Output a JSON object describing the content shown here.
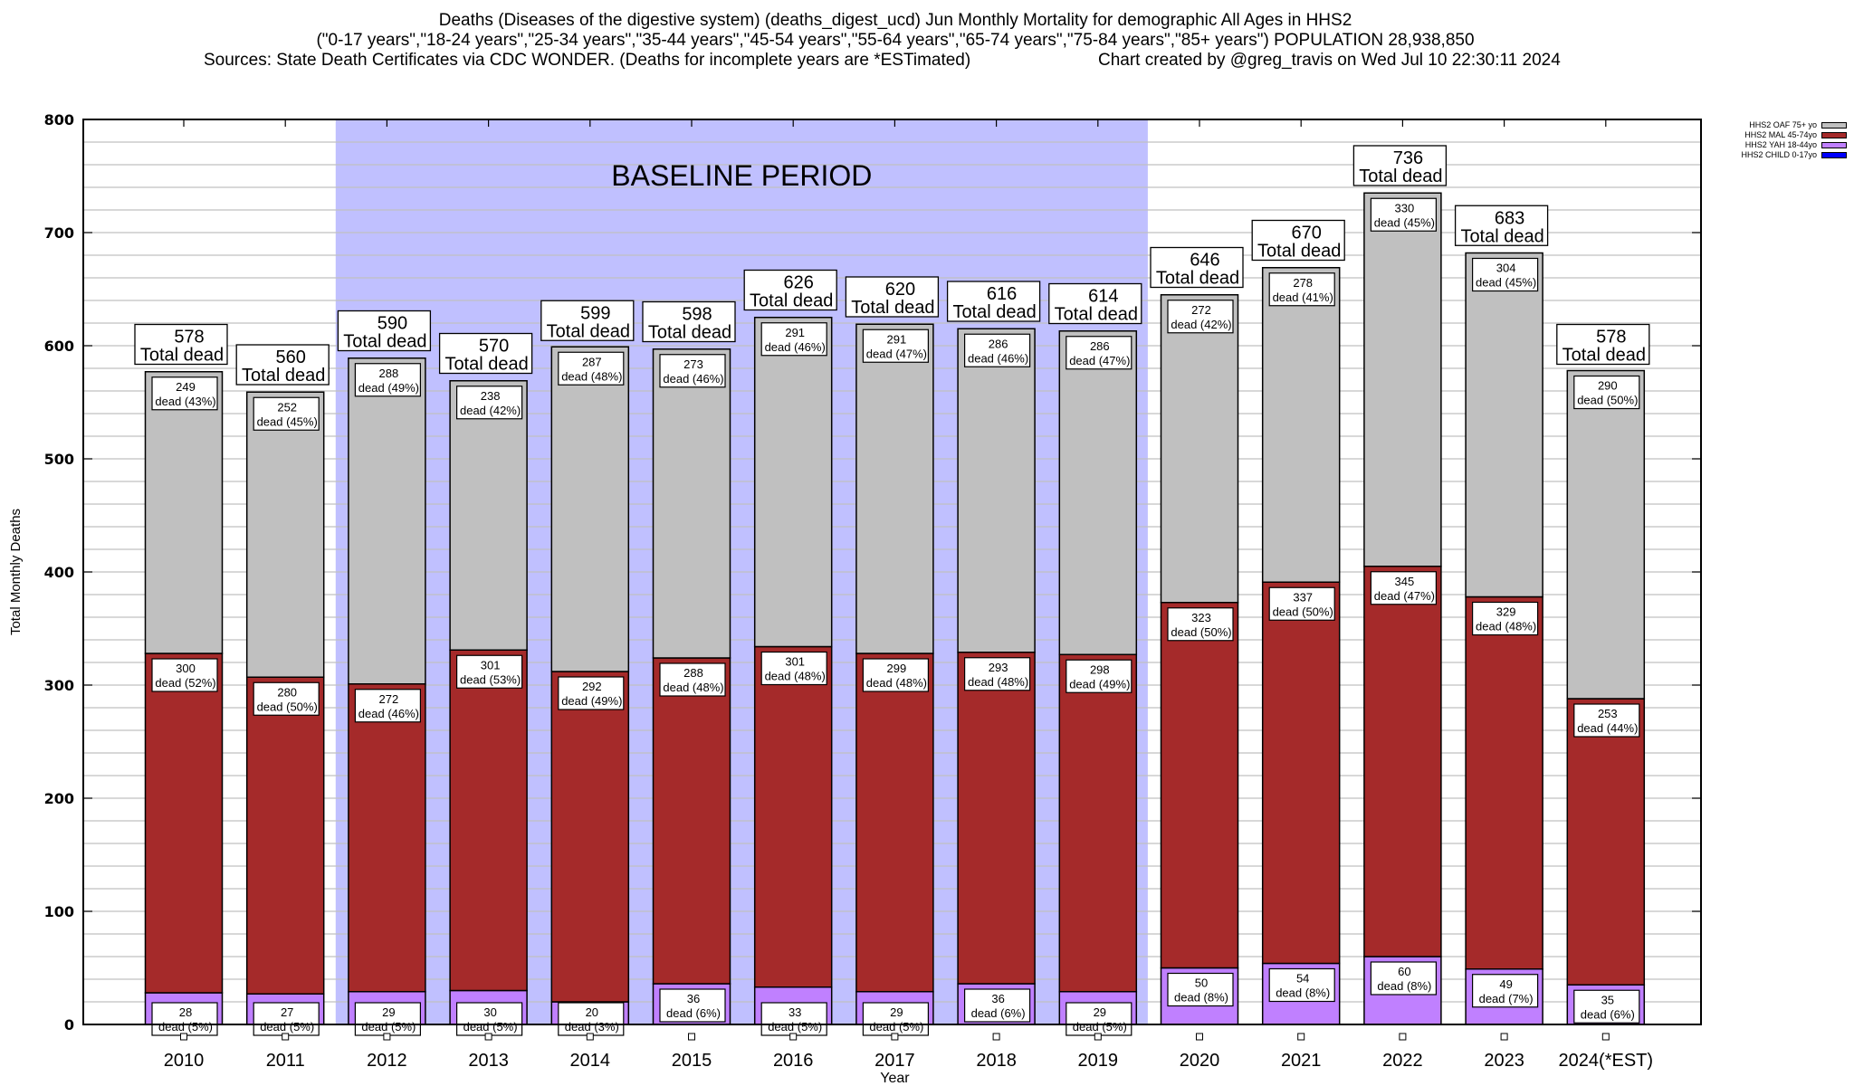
{
  "header": {
    "line1": "Deaths (Diseases of the digestive system) (deaths_digest_ucd) Jun Monthly Mortality for demographic All Ages in HHS2",
    "line2": "(\"0-17 years\",\"18-24 years\",\"25-34 years\",\"35-44 years\",\"45-54 years\",\"55-64 years\",\"65-74 years\",\"75-84 years\",\"85+ years\") POPULATION 28,938,850",
    "line3a": "Sources: State Death Certificates via CDC WONDER. (Deaths for incomplete years are *ESTimated)",
    "line3b": "Chart created by @greg_travis on Wed Jul 10 22:30:11 2024"
  },
  "colors": {
    "oaf": "#c0c0c0",
    "mal": "#a52a2a",
    "yah": "#c080ff",
    "child": "#0000ff",
    "baseline_band": "#c0c0ff",
    "grid": "#c0c0c0"
  },
  "chart_data": {
    "type": "bar",
    "stacked": true,
    "title": "Deaths (Diseases of the digestive system) (deaths_digest_ucd) Jun Monthly Mortality for demographic All Ages in HHS2",
    "xlabel": "Year",
    "ylabel": "Total Monthly Deaths",
    "ylim": [
      0,
      800
    ],
    "yticks": [
      0,
      100,
      200,
      300,
      400,
      500,
      600,
      700,
      800
    ],
    "grid": true,
    "legend_position": "top-right",
    "baseline_label": "BASELINE PERIOD",
    "baseline_range": [
      "2012",
      "2019"
    ],
    "total_suffix": "Total dead",
    "categories": [
      "2010",
      "2011",
      "2012",
      "2013",
      "2014",
      "2015",
      "2016",
      "2017",
      "2018",
      "2019",
      "2020",
      "2021",
      "2022",
      "2023",
      "2024(*EST)"
    ],
    "totals": [
      578,
      560,
      590,
      570,
      599,
      598,
      626,
      620,
      616,
      614,
      646,
      670,
      736,
      683,
      578
    ],
    "series": [
      {
        "name": "HHS2 CHILD 0-17yo",
        "key": "child",
        "values": [
          0,
          0,
          0,
          0,
          0,
          0,
          0,
          0,
          0,
          0,
          0,
          0,
          0,
          0,
          0
        ],
        "labels": []
      },
      {
        "name": "HHS2 YAH 18-44yo",
        "key": "yah",
        "values": [
          28,
          27,
          29,
          30,
          20,
          36,
          33,
          29,
          36,
          29,
          50,
          54,
          60,
          49,
          35
        ],
        "labels": [
          "dead (5%)",
          "dead (5%)",
          "dead (5%)",
          "dead (5%)",
          "dead (3%)",
          "dead (6%)",
          "dead (5%)",
          "dead (5%)",
          "dead (6%)",
          "dead (5%)",
          "dead (8%)",
          "dead (8%)",
          "dead (8%)",
          "dead (7%)",
          "dead (6%)"
        ]
      },
      {
        "name": "HHS2 MAL 45-74yo",
        "key": "mal",
        "values": [
          300,
          280,
          272,
          301,
          292,
          288,
          301,
          299,
          293,
          298,
          323,
          337,
          345,
          329,
          253
        ],
        "labels": [
          "dead (52%)",
          "dead (50%)",
          "dead (46%)",
          "dead (53%)",
          "dead (49%)",
          "dead (48%)",
          "dead (48%)",
          "dead (48%)",
          "dead (48%)",
          "dead (49%)",
          "dead (50%)",
          "dead (50%)",
          "dead (47%)",
          "dead (48%)",
          "dead (44%)"
        ]
      },
      {
        "name": "HHS2 OAF 75+ yo",
        "key": "oaf",
        "values": [
          249,
          252,
          288,
          238,
          287,
          273,
          291,
          291,
          286,
          286,
          272,
          278,
          330,
          304,
          290
        ],
        "labels": [
          "dead (43%)",
          "dead (45%)",
          "dead (49%)",
          "dead (42%)",
          "dead (48%)",
          "dead (46%)",
          "dead (46%)",
          "dead (47%)",
          "dead (46%)",
          "dead (47%)",
          "dead (42%)",
          "dead (41%)",
          "dead (45%)",
          "dead (45%)",
          "dead (50%)"
        ]
      }
    ],
    "legend": [
      "HHS2 OAF 75+ yo",
      "HHS2 MAL 45-74yo",
      "HHS2 YAH 18-44yo",
      "HHS2 CHILD 0-17yo"
    ]
  }
}
